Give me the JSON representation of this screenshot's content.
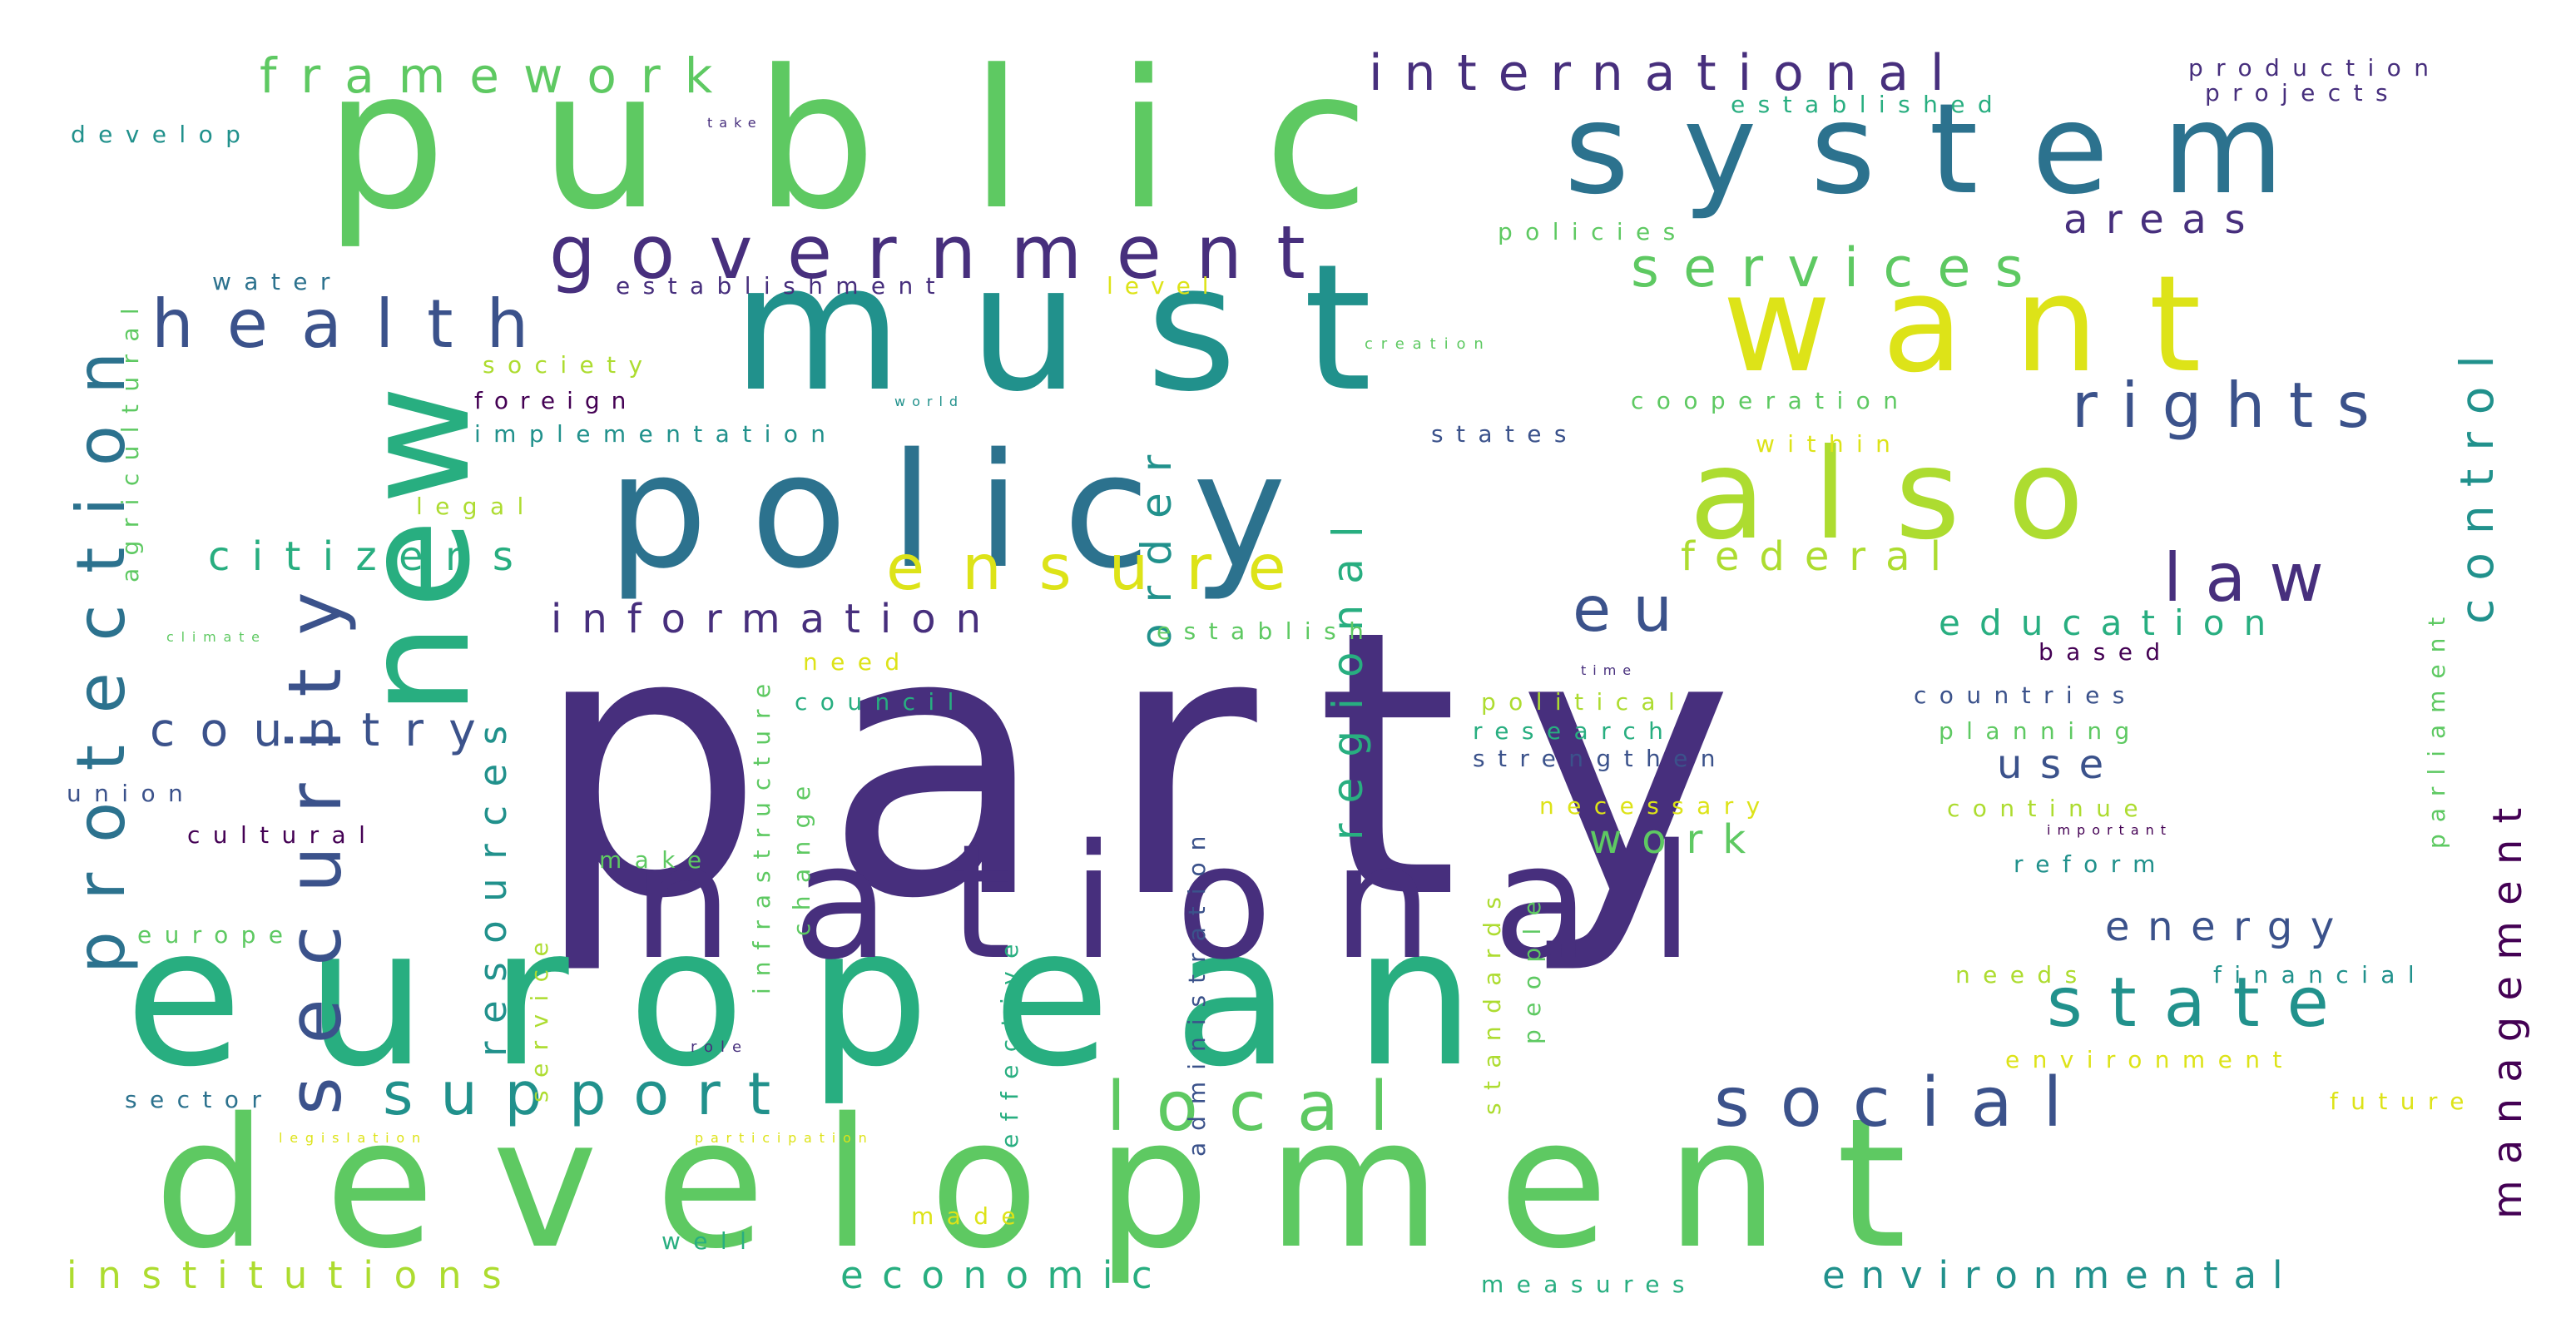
{
  "palette": {
    "c1": "#440154",
    "c2": "#472f7d",
    "c3": "#3b528b",
    "c4": "#2c728e",
    "c5": "#21918c",
    "c6": "#28ae80",
    "c7": "#5ec962",
    "c8": "#addc30",
    "c9": "#dde318"
  },
  "words": [
    {
      "text": "party",
      "color": "#472f7d"
    },
    {
      "text": "european",
      "color": "#28ae80"
    },
    {
      "text": "development",
      "color": "#5ec962"
    },
    {
      "text": "public",
      "color": "#5ec962"
    },
    {
      "text": "must",
      "color": "#21918c"
    },
    {
      "text": "national",
      "color": "#472f7d"
    },
    {
      "text": "policy",
      "color": "#2c728e"
    },
    {
      "text": "new",
      "color": "#28ae80"
    },
    {
      "text": "system",
      "color": "#2c728e"
    },
    {
      "text": "want",
      "color": "#dde318"
    },
    {
      "text": "also",
      "color": "#addc30"
    },
    {
      "text": "security",
      "color": "#3b528b"
    },
    {
      "text": "government",
      "color": "#472f7d"
    },
    {
      "text": "protection",
      "color": "#2c728e"
    },
    {
      "text": "health",
      "color": "#3b528b"
    },
    {
      "text": "state",
      "color": "#21918c"
    },
    {
      "text": "social",
      "color": "#3b528b"
    },
    {
      "text": "local",
      "color": "#5ec962"
    },
    {
      "text": "support",
      "color": "#21918c"
    },
    {
      "text": "ensure",
      "color": "#dde318"
    },
    {
      "text": "rights",
      "color": "#3b528b"
    },
    {
      "text": "services",
      "color": "#5ec962"
    },
    {
      "text": "law",
      "color": "#472f7d"
    },
    {
      "text": "eu",
      "color": "#3b528b"
    },
    {
      "text": "international",
      "color": "#472f7d"
    },
    {
      "text": "framework",
      "color": "#5ec962"
    },
    {
      "text": "country",
      "color": "#3b528b"
    },
    {
      "text": "citizens",
      "color": "#28ae80"
    },
    {
      "text": "information",
      "color": "#472f7d"
    },
    {
      "text": "regional",
      "color": "#28ae80"
    },
    {
      "text": "order",
      "color": "#21918c"
    },
    {
      "text": "control",
      "color": "#21918c"
    },
    {
      "text": "management",
      "color": "#440154"
    },
    {
      "text": "resources",
      "color": "#21918c"
    },
    {
      "text": "federal",
      "color": "#addc30"
    },
    {
      "text": "education",
      "color": "#28ae80"
    },
    {
      "text": "energy",
      "color": "#3b528b"
    },
    {
      "text": "work",
      "color": "#5ec962"
    },
    {
      "text": "use",
      "color": "#3b528b"
    },
    {
      "text": "areas",
      "color": "#472f7d"
    },
    {
      "text": "institutions",
      "color": "#addc30"
    },
    {
      "text": "economic",
      "color": "#28ae80"
    },
    {
      "text": "environmental",
      "color": "#21918c"
    },
    {
      "text": "measures",
      "color": "#28ae80"
    },
    {
      "text": "production",
      "color": "#472f7d"
    },
    {
      "text": "projects",
      "color": "#472f7d"
    },
    {
      "text": "established",
      "color": "#28ae80"
    },
    {
      "text": "develop",
      "color": "#21918c"
    },
    {
      "text": "take",
      "color": "#472f7d"
    },
    {
      "text": "water",
      "color": "#2c728e"
    },
    {
      "text": "establishment",
      "color": "#472f7d"
    },
    {
      "text": "level",
      "color": "#dde318"
    },
    {
      "text": "policies",
      "color": "#5ec962"
    },
    {
      "text": "creation",
      "color": "#5ec962"
    },
    {
      "text": "society",
      "color": "#addc30"
    },
    {
      "text": "foreign",
      "color": "#440154"
    },
    {
      "text": "world",
      "color": "#21918c"
    },
    {
      "text": "implementation",
      "color": "#21918c"
    },
    {
      "text": "states",
      "color": "#3b528b"
    },
    {
      "text": "cooperation",
      "color": "#5ec962"
    },
    {
      "text": "within",
      "color": "#dde318"
    },
    {
      "text": "legal",
      "color": "#addc30"
    },
    {
      "text": "agricultural",
      "color": "#5ec962"
    },
    {
      "text": "climate",
      "color": "#5ec962"
    },
    {
      "text": "establish",
      "color": "#5ec962"
    },
    {
      "text": "need",
      "color": "#dde318"
    },
    {
      "text": "based",
      "color": "#440154"
    },
    {
      "text": "time",
      "color": "#472f7d"
    },
    {
      "text": "council",
      "color": "#28ae80"
    },
    {
      "text": "political",
      "color": "#addc30"
    },
    {
      "text": "countries",
      "color": "#3b528b"
    },
    {
      "text": "research",
      "color": "#28ae80"
    },
    {
      "text": "planning",
      "color": "#5ec962"
    },
    {
      "text": "strengthen",
      "color": "#3b528b"
    },
    {
      "text": "union",
      "color": "#3b528b"
    },
    {
      "text": "cultural",
      "color": "#440154"
    },
    {
      "text": "necessary",
      "color": "#dde318"
    },
    {
      "text": "continue",
      "color": "#addc30"
    },
    {
      "text": "important",
      "color": "#440154"
    },
    {
      "text": "make",
      "color": "#5ec962"
    },
    {
      "text": "reform",
      "color": "#21918c"
    },
    {
      "text": "europe",
      "color": "#5ec962"
    },
    {
      "text": "infrastructure",
      "color": "#5ec962"
    },
    {
      "text": "change",
      "color": "#5ec962"
    },
    {
      "text": "administration",
      "color": "#3b528b"
    },
    {
      "text": "effective",
      "color": "#28ae80"
    },
    {
      "text": "standards",
      "color": "#addc30"
    },
    {
      "text": "people",
      "color": "#5ec962"
    },
    {
      "text": "service",
      "color": "#addc30"
    },
    {
      "text": "parliament",
      "color": "#5ec962"
    },
    {
      "text": "needs",
      "color": "#addc30"
    },
    {
      "text": "financial",
      "color": "#21918c"
    },
    {
      "text": "environment",
      "color": "#dde318"
    },
    {
      "text": "role",
      "color": "#472f7d"
    },
    {
      "text": "sector",
      "color": "#2c728e"
    },
    {
      "text": "future",
      "color": "#dde318"
    },
    {
      "text": "legislation",
      "color": "#dde318"
    },
    {
      "text": "participation",
      "color": "#dde318"
    },
    {
      "text": "made",
      "color": "#dde318"
    },
    {
      "text": "well",
      "color": "#28ae80"
    }
  ]
}
